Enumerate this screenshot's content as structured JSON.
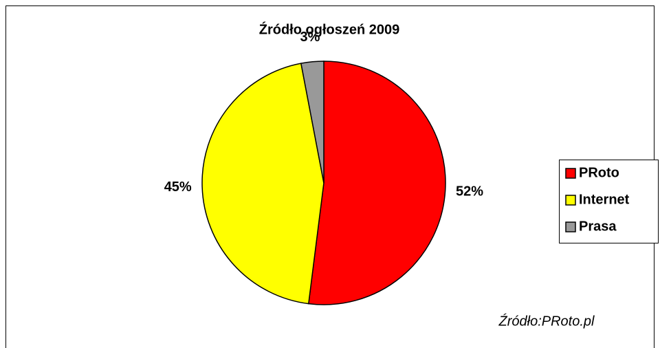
{
  "chart_data": {
    "type": "pie",
    "title": "Źródło ogłoszeń 2009",
    "categories": [
      "PRoto",
      "Internet",
      "Prasa"
    ],
    "values": [
      52,
      45,
      3
    ],
    "value_labels": [
      "52%",
      "45%",
      "3%"
    ],
    "colors": [
      "#ff0000",
      "#ffff00",
      "#999999"
    ],
    "legend": "right",
    "annotation": "Źródło:PRoto.pl"
  }
}
